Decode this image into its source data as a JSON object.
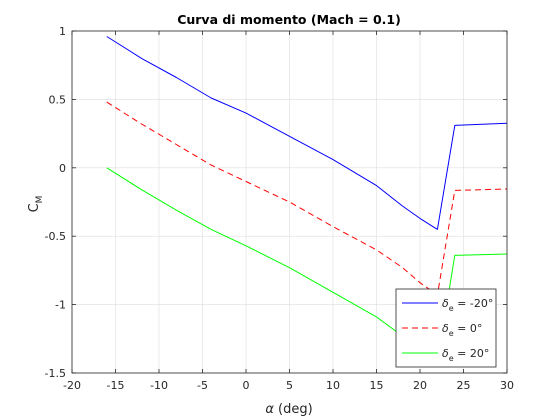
{
  "chart_data": {
    "type": "line",
    "title": "Curva di momento (Mach = 0.1)",
    "xlabel": {
      "symbol": "α",
      "unit": " (deg)"
    },
    "ylabel": {
      "base": "C",
      "sub": "M"
    },
    "xlim": [
      -20,
      30
    ],
    "ylim": [
      -1.5,
      1
    ],
    "xticks": [
      -20,
      -15,
      -10,
      -5,
      0,
      5,
      10,
      15,
      20,
      25,
      30
    ],
    "yticks": [
      -1.5,
      -1,
      -0.5,
      0,
      0.5,
      1
    ],
    "grid": true,
    "legend_position": "bottom-right",
    "series": [
      {
        "legend": {
          "symbol": "δ",
          "sub": "e",
          "value": " = -20°"
        },
        "color": "#0000ff",
        "dash": "solid",
        "x": [
          -16,
          -12,
          -8,
          -4,
          0,
          5,
          10,
          15,
          18,
          20,
          22,
          24,
          30
        ],
        "y": [
          0.96,
          0.8,
          0.66,
          0.51,
          0.4,
          0.23,
          0.06,
          -0.13,
          -0.28,
          -0.37,
          -0.45,
          0.31,
          0.325
        ]
      },
      {
        "legend": {
          "symbol": "δ",
          "sub": "e",
          "value": " = 0°"
        },
        "color": "#ff0000",
        "dash": "dashed",
        "x": [
          -16,
          -12,
          -8,
          -4,
          0,
          5,
          10,
          15,
          18,
          20,
          22,
          24,
          30
        ],
        "y": [
          0.48,
          0.32,
          0.17,
          0.02,
          -0.1,
          -0.25,
          -0.43,
          -0.6,
          -0.73,
          -0.84,
          -0.93,
          -0.165,
          -0.155
        ]
      },
      {
        "legend": {
          "symbol": "δ",
          "sub": "e",
          "value": " = 20°"
        },
        "color": "#00ff00",
        "dash": "solid",
        "x": [
          -16,
          -12,
          -8,
          -4,
          0,
          5,
          10,
          15,
          18,
          20,
          22,
          24,
          30
        ],
        "y": [
          0.0,
          -0.16,
          -0.31,
          -0.45,
          -0.57,
          -0.73,
          -0.91,
          -1.09,
          -1.23,
          -1.33,
          -1.42,
          -0.64,
          -0.63
        ]
      }
    ]
  }
}
